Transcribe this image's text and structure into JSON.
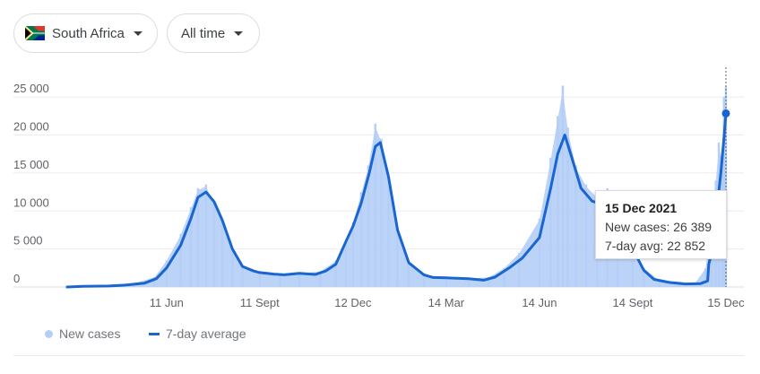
{
  "controls": {
    "country": "South Africa",
    "range": "All time",
    "flag_icon": "south-africa-flag-icon"
  },
  "colors": {
    "bars": "#b5cef7",
    "line": "#1a66d0",
    "grid": "#ebebeb",
    "axis_text": "#5f6368"
  },
  "tooltip": {
    "date": "15 Dec 2021",
    "new_cases": "New cases: 26 389",
    "avg": "7-day avg: 22 852"
  },
  "legend": {
    "cases": "New cases",
    "avg": "7-day average"
  },
  "chart_data": {
    "type": "bar",
    "title": "",
    "xlabel": "",
    "ylabel": "",
    "ylim": [
      0,
      27500
    ],
    "yticks": [
      0,
      5000,
      10000,
      15000,
      20000,
      25000
    ],
    "ytick_labels": [
      "0",
      "5 000",
      "10 000",
      "15 000",
      "20 000",
      "25 000"
    ],
    "x_start": "2020-03-05",
    "x_end": "2021-12-15",
    "xtick_dates": [
      "2020-06-11",
      "2020-09-11",
      "2020-12-12",
      "2021-03-14",
      "2021-06-14",
      "2021-09-14",
      "2021-12-15"
    ],
    "xtick_labels": [
      "11 Jun",
      "11 Sept",
      "12 Dec",
      "14 Mar",
      "14 Jun",
      "14 Sept",
      "15 Dec"
    ],
    "grid": true,
    "legend_position": "bottom-left",
    "highlight": {
      "date": "2021-12-15",
      "new_cases": 26389,
      "avg": 22852
    },
    "series": [
      {
        "name": "New cases",
        "kind": "bars",
        "points": [
          [
            "2020-03-05",
            0
          ],
          [
            "2020-04-15",
            150
          ],
          [
            "2020-05-10",
            500
          ],
          [
            "2020-05-30",
            1300
          ],
          [
            "2020-06-11",
            3500
          ],
          [
            "2020-06-25",
            7000
          ],
          [
            "2020-07-05",
            10500
          ],
          [
            "2020-07-12",
            13000
          ],
          [
            "2020-07-20",
            13500
          ],
          [
            "2020-07-28",
            11000
          ],
          [
            "2020-08-05",
            8500
          ],
          [
            "2020-08-15",
            4500
          ],
          [
            "2020-08-25",
            2700
          ],
          [
            "2020-09-11",
            1900
          ],
          [
            "2020-10-01",
            1700
          ],
          [
            "2020-10-20",
            1800
          ],
          [
            "2020-11-10",
            2100
          ],
          [
            "2020-11-25",
            3500
          ],
          [
            "2020-12-05",
            6000
          ],
          [
            "2020-12-12",
            8500
          ],
          [
            "2020-12-20",
            12500
          ],
          [
            "2020-12-27",
            16000
          ],
          [
            "2021-01-03",
            21500
          ],
          [
            "2021-01-09",
            19500
          ],
          [
            "2021-01-16",
            13500
          ],
          [
            "2021-01-25",
            7500
          ],
          [
            "2021-02-05",
            3000
          ],
          [
            "2021-02-20",
            1700
          ],
          [
            "2021-03-14",
            1200
          ],
          [
            "2021-04-05",
            1100
          ],
          [
            "2021-04-25",
            1300
          ],
          [
            "2021-05-10",
            2500
          ],
          [
            "2021-05-25",
            4500
          ],
          [
            "2021-06-14",
            9000
          ],
          [
            "2021-06-25",
            17000
          ],
          [
            "2021-07-02",
            22500
          ],
          [
            "2021-07-07",
            26500
          ],
          [
            "2021-07-12",
            21000
          ],
          [
            "2021-07-20",
            16000
          ],
          [
            "2021-07-30",
            13500
          ],
          [
            "2021-08-10",
            12000
          ],
          [
            "2021-08-20",
            13000
          ],
          [
            "2021-08-30",
            11000
          ],
          [
            "2021-09-14",
            5500
          ],
          [
            "2021-09-25",
            2500
          ],
          [
            "2021-10-10",
            900
          ],
          [
            "2021-10-30",
            450
          ],
          [
            "2021-11-15",
            600
          ],
          [
            "2021-11-25",
            2500
          ],
          [
            "2021-12-01",
            8500
          ],
          [
            "2021-12-05",
            14000
          ],
          [
            "2021-12-08",
            19000
          ],
          [
            "2021-12-11",
            17000
          ],
          [
            "2021-12-13",
            25000
          ],
          [
            "2021-12-15",
            26389
          ]
        ]
      },
      {
        "name": "7-day average",
        "kind": "line",
        "points": [
          [
            "2020-03-05",
            0
          ],
          [
            "2020-03-20",
            100
          ],
          [
            "2020-04-15",
            130
          ],
          [
            "2020-05-01",
            250
          ],
          [
            "2020-05-20",
            500
          ],
          [
            "2020-06-01",
            1100
          ],
          [
            "2020-06-11",
            2500
          ],
          [
            "2020-06-25",
            5500
          ],
          [
            "2020-07-05",
            9000
          ],
          [
            "2020-07-12",
            11800
          ],
          [
            "2020-07-20",
            12500
          ],
          [
            "2020-07-28",
            11200
          ],
          [
            "2020-08-05",
            8800
          ],
          [
            "2020-08-15",
            5000
          ],
          [
            "2020-08-25",
            2700
          ],
          [
            "2020-09-05",
            2100
          ],
          [
            "2020-09-11",
            1900
          ],
          [
            "2020-09-25",
            1700
          ],
          [
            "2020-10-05",
            1600
          ],
          [
            "2020-10-20",
            1800
          ],
          [
            "2020-11-05",
            1650
          ],
          [
            "2020-11-15",
            2100
          ],
          [
            "2020-11-25",
            3000
          ],
          [
            "2020-12-05",
            6000
          ],
          [
            "2020-12-12",
            8000
          ],
          [
            "2020-12-20",
            11000
          ],
          [
            "2020-12-28",
            15000
          ],
          [
            "2021-01-03",
            18500
          ],
          [
            "2021-01-08",
            19000
          ],
          [
            "2021-01-16",
            14500
          ],
          [
            "2021-01-25",
            7500
          ],
          [
            "2021-02-05",
            3200
          ],
          [
            "2021-02-20",
            1600
          ],
          [
            "2021-03-01",
            1250
          ],
          [
            "2021-03-14",
            1200
          ],
          [
            "2021-03-25",
            1150
          ],
          [
            "2021-04-05",
            1100
          ],
          [
            "2021-04-20",
            900
          ],
          [
            "2021-05-01",
            1300
          ],
          [
            "2021-05-15",
            2500
          ],
          [
            "2021-05-28",
            3800
          ],
          [
            "2021-06-14",
            6500
          ],
          [
            "2021-06-25",
            13000
          ],
          [
            "2021-07-02",
            17500
          ],
          [
            "2021-07-09",
            20000
          ],
          [
            "2021-07-16",
            17000
          ],
          [
            "2021-07-25",
            13000
          ],
          [
            "2021-08-05",
            11300
          ],
          [
            "2021-08-15",
            10900
          ],
          [
            "2021-08-22",
            12000
          ],
          [
            "2021-08-30",
            10700
          ],
          [
            "2021-09-07",
            7500
          ],
          [
            "2021-09-14",
            5000
          ],
          [
            "2021-09-25",
            2200
          ],
          [
            "2021-10-05",
            1000
          ],
          [
            "2021-10-20",
            600
          ],
          [
            "2021-11-05",
            400
          ],
          [
            "2021-11-20",
            450
          ],
          [
            "2021-11-27",
            800
          ],
          [
            "2021-11-28",
            3000
          ],
          [
            "2021-12-01",
            4500
          ],
          [
            "2021-12-05",
            9000
          ],
          [
            "2021-12-10",
            15000
          ],
          [
            "2021-12-13",
            19500
          ],
          [
            "2021-12-15",
            22852
          ]
        ]
      }
    ]
  }
}
